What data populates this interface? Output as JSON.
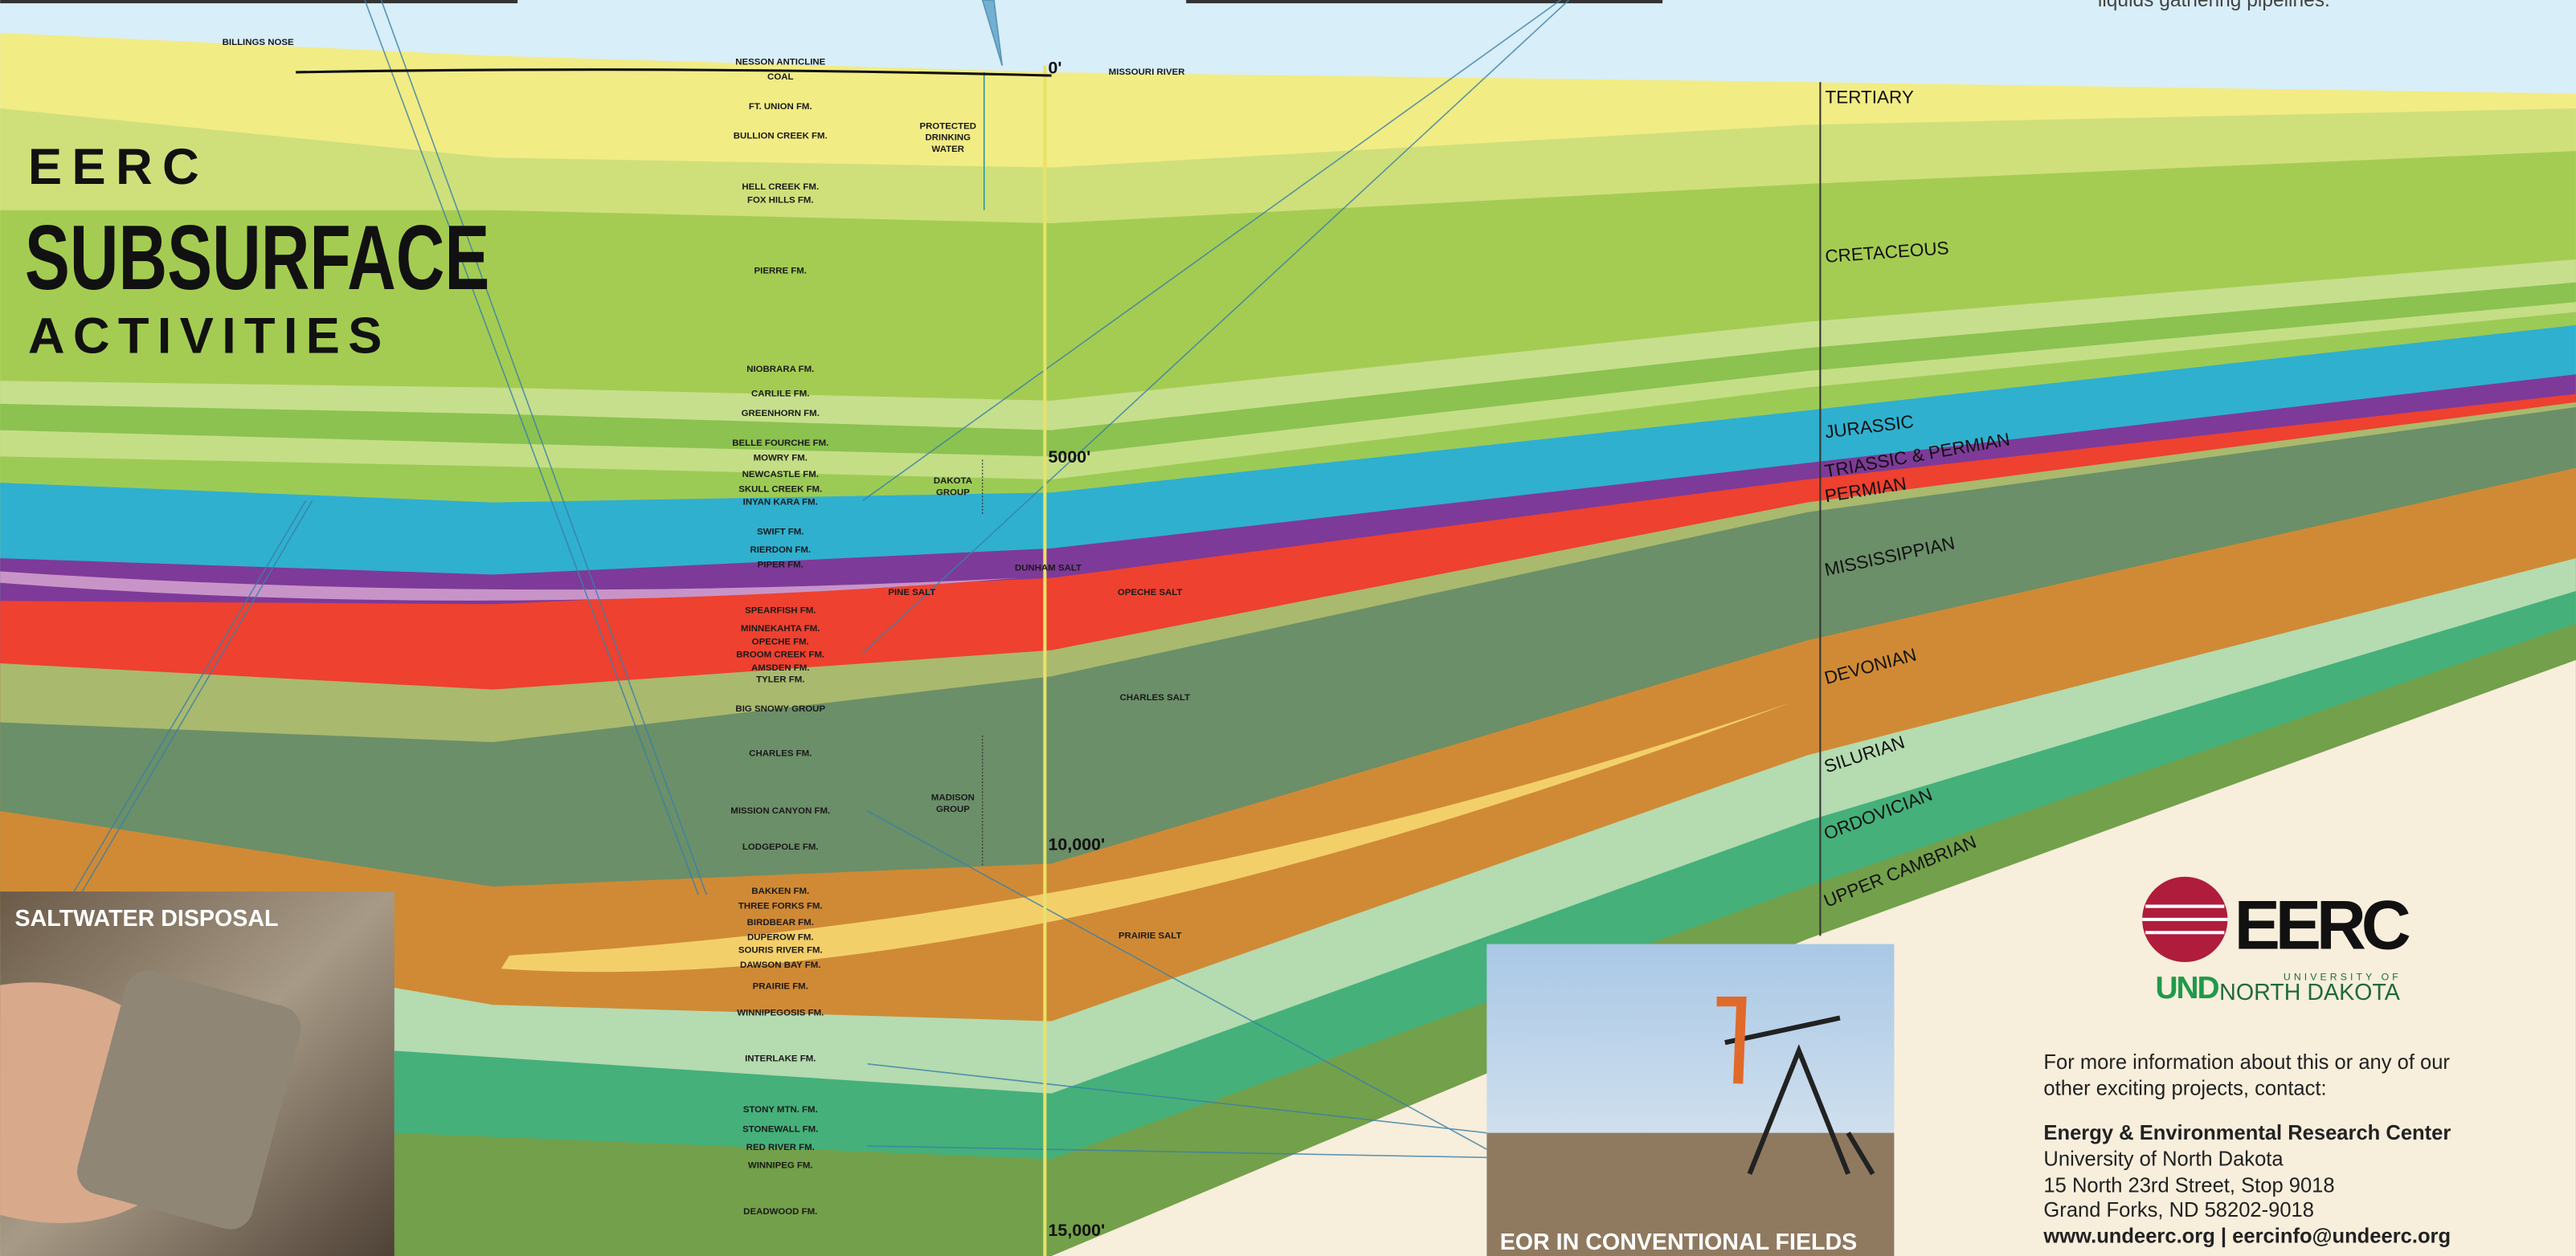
{
  "header": {
    "line1": "EERC",
    "line2": "SUBSURFACE",
    "line3": "ACTIVITIES"
  },
  "top_note": "liquids gathering pipelines.",
  "formations": [
    "BILLINGS NOSE",
    "NESSON ANTICLINE",
    "COAL",
    "MISSOURI RIVER",
    "FT. UNION FM.",
    "BULLION CREEK FM.",
    "HELL CREEK FM.",
    "FOX HILLS FM.",
    "PIERRE FM.",
    "NIOBRARA FM.",
    "CARLILE FM.",
    "GREENHORN FM.",
    "BELLE FOURCHE FM.",
    "MOWRY FM.",
    "NEWCASTLE FM.",
    "SKULL CREEK FM.",
    "INYAN KARA FM.",
    "SWIFT FM.",
    "RIERDON FM.",
    "PIPER FM.",
    "DUNHAM SALT",
    "PINE SALT",
    "OPECHE SALT",
    "SPEARFISH FM.",
    "MINNEKAHTA FM.",
    "OPECHE FM.",
    "BROOM CREEK FM.",
    "AMSDEN FM.",
    "TYLER FM.",
    "BIG SNOWY GROUP",
    "CHARLES SALT",
    "CHARLES FM.",
    "MISSION CANYON FM.",
    "LODGEPOLE FM.",
    "BAKKEN FM.",
    "THREE FORKS FM.",
    "BIRDBEAR FM.",
    "DUPEROW FM.",
    "SOURIS RIVER FM.",
    "DAWSON BAY FM.",
    "PRAIRIE SALT",
    "PRAIRIE FM.",
    "WINNIPEGOSIS FM.",
    "INTERLAKE FM.",
    "STONY MTN. FM.",
    "STONEWALL FM.",
    "RED RIVER FM.",
    "WINNIPEG FM.",
    "DEADWOOD FM."
  ],
  "groups": [
    {
      "lines": [
        "PROTECTED",
        "DRINKING",
        "WATER"
      ]
    },
    {
      "lines": [
        "DAKOTA",
        "GROUP"
      ]
    },
    {
      "lines": [
        "MADISON",
        "GROUP"
      ]
    }
  ],
  "periods": [
    "TERTIARY",
    "CRETACEOUS",
    "JURASSIC",
    "TRIASSIC & PERMIAN",
    "PERMIAN",
    "MISSISSIPPIAN",
    "DEVONIAN",
    "SILURIAN",
    "ORDOVICIAN",
    "UPPER CAMBRIAN"
  ],
  "depths": [
    "0'",
    "5000'",
    "10,000'",
    "15,000'"
  ],
  "photos": {
    "saltwater": "SALTWATER DISPOSAL",
    "eor": "EOR IN CONVENTIONAL FIELDS"
  },
  "logo": {
    "eerc": "EERC",
    "und": "UND",
    "university_of": "UNIVERSITY OF",
    "north_dakota": "NORTH DAKOTA"
  },
  "contact": {
    "intro": [
      "For more information about this or any of our",
      "other exciting projects, contact:"
    ],
    "org": "Energy & Environmental Research Center",
    "lines": [
      "University of North Dakota",
      "15 North 23rd Street, Stop 9018",
      "Grand Forks, ND 58202-9018"
    ],
    "web": "www.undeerc.org | eercinfo@undeerc.org"
  }
}
